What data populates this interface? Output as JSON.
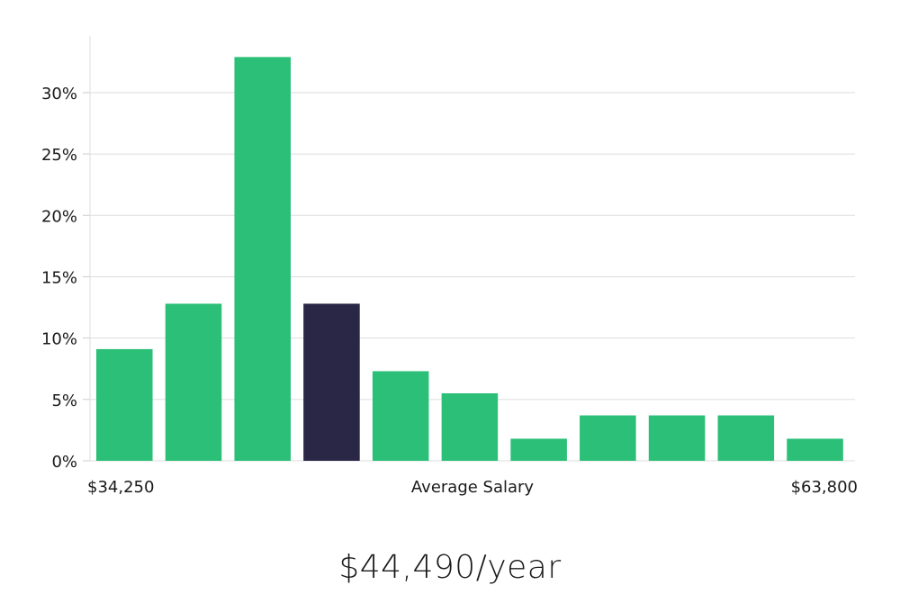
{
  "chart_data": {
    "type": "bar",
    "title": "",
    "xlabel": "Average Salary",
    "ylabel": "",
    "x_min_label": "$34,250",
    "x_max_label": "$63,800",
    "values": [
      9.1,
      12.8,
      32.9,
      12.8,
      7.3,
      5.5,
      1.8,
      3.7,
      3.7,
      3.7,
      1.8
    ],
    "highlight_index": 3,
    "ylim": [
      0,
      34.5
    ],
    "yticks": [
      0,
      5,
      10,
      15,
      20,
      25,
      30
    ],
    "ytick_labels": [
      "0%",
      "5%",
      "10%",
      "15%",
      "20%",
      "25%",
      "30%"
    ],
    "colors": {
      "bar": "#2bbf77",
      "highlight": "#292646"
    }
  },
  "summary": {
    "salary": "$44,490/year"
  }
}
